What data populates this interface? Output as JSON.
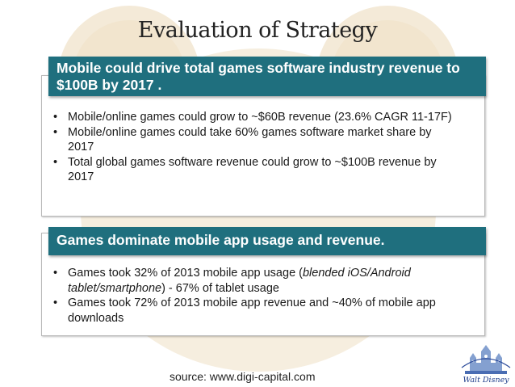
{
  "title": "Evaluation of Strategy",
  "panel1": {
    "heading": "Mobile could drive total games software industry revenue to $100B by 2017 .",
    "bullets": [
      "Mobile/online games could grow to ~$60B revenue (23.6% CAGR 11-17F)",
      "Mobile/online games could take 60% games software market share by 2017",
      "Total global games software revenue could grow to ~$100B revenue by 2017"
    ]
  },
  "panel2": {
    "heading": "Games dominate mobile app usage and revenue.",
    "bullet1_pre": "Games took 32% of 2013 mobile app usage (",
    "bullet1_em": "blended iOS/Android tablet/smartphone",
    "bullet1_post": ") - 67% of tablet usage",
    "bullet2": "Games took 72% of 2013 mobile app revenue and ~40% of mobile app downloads"
  },
  "bullet_char": "•",
  "source": "source: www.digi-capital.com",
  "logo_text": "Walt Disney",
  "colors": {
    "heading_bg": "#1f6f7e",
    "watermark": "#f3e9d6"
  }
}
